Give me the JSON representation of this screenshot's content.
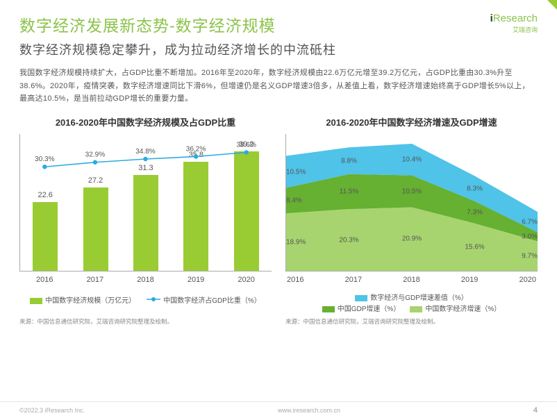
{
  "meta": {
    "page_number": "4",
    "copyright_left": "©2022.3 iResearch Inc.",
    "copyright_right": "www.iresearch.com.cn",
    "logo_line1": "Research",
    "logo_prefix": "i",
    "logo_sub": "艾瑞咨询",
    "accent_color": "#8BC34A"
  },
  "title": "数字经济发展新态势-数字经济规模",
  "subtitle": "数字经济规模稳定攀升，成为拉动经济增长的中流砥柱",
  "paragraph": "我国数字经济规模持续扩大，占GDP比重不断增加。2016年至2020年，数字经济规模由22.6万亿元增至39.2万亿元，占GDP比重由30.3%升至38.6%。2020年，疫情突袭，数字经济增速同比下滑6%，但增速仍是名义GDP增速3倍多，从差值上看，数字经济增速始终高于GDP增长5%以上，最高达10.5%，是当前拉动GDP增长的重要力量。",
  "chart1": {
    "title": "2016-2020年中国数字经济规模及占GDP比重",
    "type": "bar+line",
    "categories": [
      "2016",
      "2017",
      "2018",
      "2019",
      "2020"
    ],
    "bar_values": [
      22.6,
      27.2,
      31.3,
      35.8,
      39.2
    ],
    "bar_color": "#99CC33",
    "bar_ymax": 45,
    "line_values": [
      30.3,
      32.9,
      34.8,
      36.2,
      38.6
    ],
    "line_labels": [
      "30.3%",
      "32.9%",
      "34.8%",
      "36.2%",
      "38.6%"
    ],
    "line_color": "#29ABE2",
    "line_ymin": 0,
    "line_ymax": 100,
    "legend_bar": "中国数字经济规模（万亿元）",
    "legend_line": "中国数字经济占GDP比重（%）",
    "source": "来源：中国信息通信研究院，艾瑞咨询研究院整理及绘制。"
  },
  "chart2": {
    "title": "2016-2020年中国数字经济增速及GDP增速",
    "type": "stacked-area",
    "categories": [
      "2016",
      "2017",
      "2018",
      "2019",
      "2020"
    ],
    "series": [
      {
        "name": "数字经济与GDP增速差值（%）",
        "color": "#4FC3E8",
        "values": [
          10.5,
          8.8,
          10.4,
          8.3,
          6.7
        ],
        "labels": [
          "10.5%",
          "8.8%",
          "10.4%",
          "8.3%",
          "6.7%"
        ]
      },
      {
        "name": "中国GDP增速（%）",
        "color": "#66B032",
        "values": [
          8.4,
          11.5,
          10.5,
          7.3,
          3.0
        ],
        "labels": [
          "8.4%",
          "11.5%",
          "10.5%",
          "7.3%",
          "3.0%"
        ]
      },
      {
        "name": "中国数字经济增速（%）",
        "color": "#A8D46F",
        "values": [
          18.9,
          20.3,
          20.9,
          15.6,
          9.7
        ],
        "labels": [
          "18.9%",
          "20.3%",
          "20.9%",
          "15.6%",
          "9.7%"
        ]
      }
    ],
    "ymax": 45,
    "source": "来源：中国信息通信研究院，艾瑞咨询研究院整理及绘制。"
  }
}
